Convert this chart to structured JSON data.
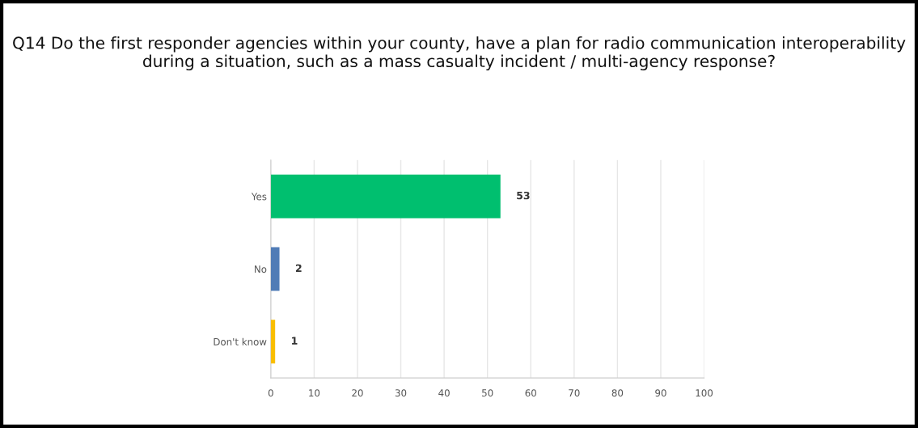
{
  "chart_data": {
    "type": "bar",
    "orientation": "horizontal",
    "title": "Q14 Do the first responder agencies within your county, have a plan for radio communication interoperability during a situation, such as a mass casualty incident / multi-agency response?",
    "categories": [
      "Yes",
      "No",
      "Don't know"
    ],
    "values": [
      53,
      2,
      1
    ],
    "colors": [
      "#00bf6f",
      "#507cb6",
      "#f9be00"
    ],
    "xlim": [
      0,
      100
    ],
    "xticks": [
      0,
      10,
      20,
      30,
      40,
      50,
      60,
      70,
      80,
      90,
      100
    ],
    "grid": "x",
    "data_labels": true,
    "legend": false
  }
}
